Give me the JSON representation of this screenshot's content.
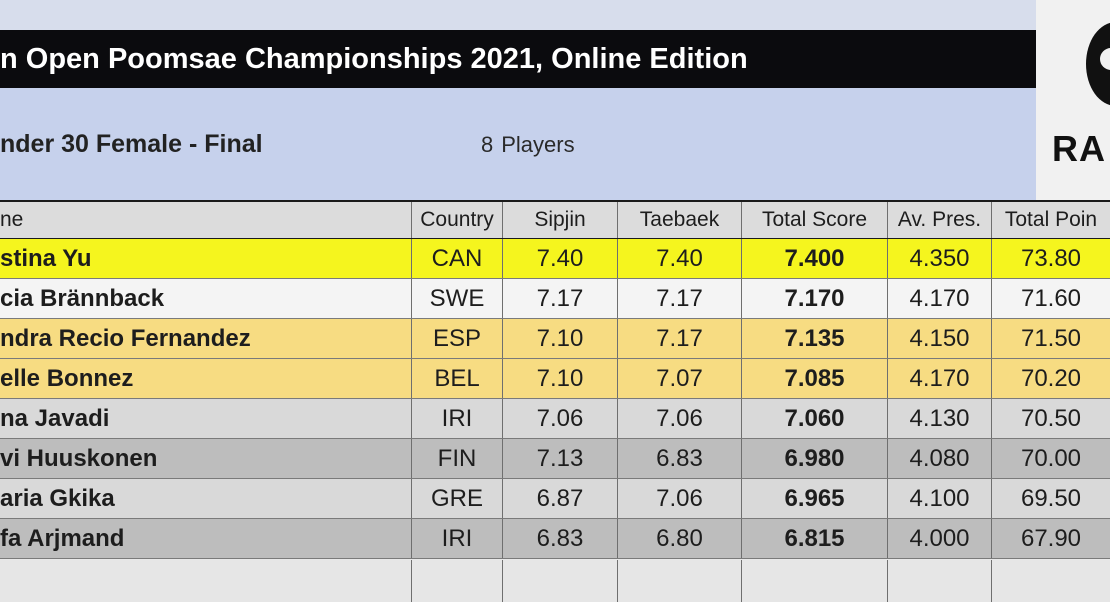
{
  "header": {
    "title": "n Open Poomsae Championships 2021, Online Edition",
    "event": "nder 30 Female - Final",
    "players_count": "8",
    "players_label": "Players",
    "logo_text": "RA"
  },
  "colors": {
    "gold": "#f5f51e",
    "silver": "#f4f4f4",
    "bronze": "#f7dc82",
    "gray_light": "#d9d9d9",
    "gray_dark": "#bdbdbd",
    "title_bar": "#0b0b0e",
    "band": "#c6d1ec"
  },
  "table": {
    "columns": [
      "ne",
      "Country",
      "Sipjin",
      "Taebaek",
      "Total Score",
      "Av. Pres.",
      "Total Poin"
    ],
    "rows": [
      {
        "name": "stina Yu",
        "country": "CAN",
        "sipjin": "7.40",
        "taebaek": "7.40",
        "total": "7.400",
        "pres": "4.350",
        "points": "73.80",
        "highlight": "gold"
      },
      {
        "name": "cia Brännback",
        "country": "SWE",
        "sipjin": "7.17",
        "taebaek": "7.17",
        "total": "7.170",
        "pres": "4.170",
        "points": "71.60",
        "highlight": "silver"
      },
      {
        "name": "ndra Recio Fernandez",
        "country": "ESP",
        "sipjin": "7.10",
        "taebaek": "7.17",
        "total": "7.135",
        "pres": "4.150",
        "points": "71.50",
        "highlight": "bronze"
      },
      {
        "name": "elle Bonnez",
        "country": "BEL",
        "sipjin": "7.10",
        "taebaek": "7.07",
        "total": "7.085",
        "pres": "4.170",
        "points": "70.20",
        "highlight": "bronze"
      },
      {
        "name": "na Javadi",
        "country": "IRI",
        "sipjin": "7.06",
        "taebaek": "7.06",
        "total": "7.060",
        "pres": "4.130",
        "points": "70.50",
        "highlight": "gray_light"
      },
      {
        "name": "vi Huuskonen",
        "country": "FIN",
        "sipjin": "7.13",
        "taebaek": "6.83",
        "total": "6.980",
        "pres": "4.080",
        "points": "70.00",
        "highlight": "gray_dark"
      },
      {
        "name": "aria Gkika",
        "country": "GRE",
        "sipjin": "6.87",
        "taebaek": "7.06",
        "total": "6.965",
        "pres": "4.100",
        "points": "69.50",
        "highlight": "gray_light"
      },
      {
        "name": "fa Arjmand",
        "country": "IRI",
        "sipjin": "6.83",
        "taebaek": "6.80",
        "total": "6.815",
        "pres": "4.000",
        "points": "67.90",
        "highlight": "gray_dark"
      }
    ]
  }
}
